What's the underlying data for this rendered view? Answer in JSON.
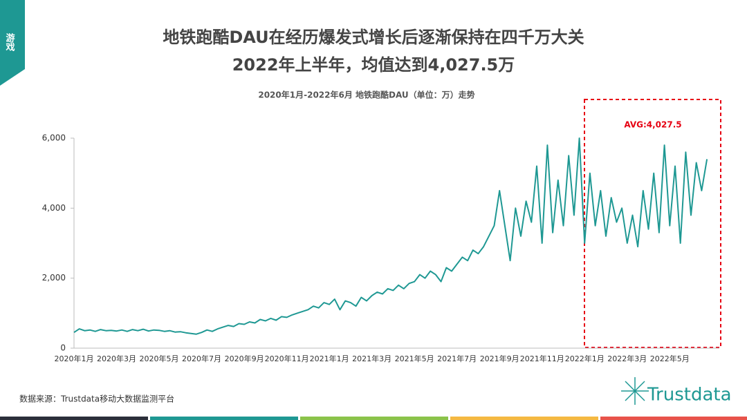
{
  "header": {
    "tag": "游戏",
    "title_lines": [
      "地铁跑酷DAU在经历爆发式增长后逐渐保持在四千万大关",
      "2022年上半年，均值达到4,027.5万"
    ]
  },
  "chart_data": {
    "type": "line",
    "title": "2020年1月-2022年6月 地铁跑酷DAU（单位：万）走势",
    "annotation": "AVG:4,027.5",
    "categories": [
      "2020年1月",
      null,
      null,
      null,
      null,
      null,
      null,
      null,
      "2020年3月",
      null,
      null,
      null,
      null,
      null,
      null,
      null,
      "2020年5月",
      null,
      null,
      null,
      null,
      null,
      null,
      null,
      "2020年7月",
      null,
      null,
      null,
      null,
      null,
      null,
      null,
      "2020年9月",
      null,
      null,
      null,
      null,
      null,
      null,
      null,
      "2020年11月",
      null,
      null,
      null,
      null,
      null,
      null,
      null,
      "2021年1月",
      null,
      null,
      null,
      null,
      null,
      null,
      null,
      "2021年3月",
      null,
      null,
      null,
      null,
      null,
      null,
      null,
      "2021年5月",
      null,
      null,
      null,
      null,
      null,
      null,
      null,
      "2021年7月",
      null,
      null,
      null,
      null,
      null,
      null,
      null,
      "2021年9月",
      null,
      null,
      null,
      null,
      null,
      null,
      null,
      "2021年11月",
      null,
      null,
      null,
      null,
      null,
      null,
      null,
      "2022年1月",
      null,
      null,
      null,
      null,
      null,
      null,
      null,
      "2022年3月",
      null,
      null,
      null,
      null,
      null,
      null,
      null,
      "2022年5月",
      null,
      null,
      null,
      null,
      null,
      null,
      null
    ],
    "values": [
      450,
      550,
      500,
      520,
      480,
      530,
      500,
      510,
      490,
      520,
      480,
      530,
      500,
      540,
      490,
      520,
      510,
      480,
      500,
      460,
      470,
      440,
      420,
      400,
      450,
      520,
      480,
      550,
      600,
      650,
      620,
      700,
      680,
      750,
      720,
      820,
      780,
      850,
      800,
      900,
      880,
      950,
      1000,
      1050,
      1100,
      1200,
      1150,
      1300,
      1250,
      1400,
      1100,
      1350,
      1300,
      1200,
      1450,
      1350,
      1500,
      1600,
      1550,
      1700,
      1650,
      1800,
      1700,
      1850,
      1900,
      2100,
      2000,
      2200,
      2100,
      1900,
      2300,
      2200,
      2400,
      2600,
      2500,
      2800,
      2700,
      2900,
      3200,
      3500,
      4500,
      3500,
      2500,
      4000,
      3200,
      4200,
      3600,
      5200,
      3000,
      5800,
      3300,
      4800,
      3500,
      5500,
      3800,
      6000,
      3000,
      5000,
      3500,
      4500,
      3200,
      4300,
      3600,
      4000,
      3000,
      3800,
      2900,
      4500,
      3400,
      5000,
      3300,
      5800,
      3500,
      5200,
      3000,
      5600,
      3800,
      5300,
      4500,
      5400
    ],
    "color": "#1e9893",
    "ylim": [
      0,
      6000
    ],
    "yticks": [
      0,
      {
        "value": 2000,
        "label": "2,000"
      },
      {
        "value": 4000,
        "label": "4,000"
      },
      {
        "value": 6000,
        "label": "6,000"
      }
    ]
  },
  "source": "数据来源：Trustdata移动大数据监测平台",
  "logo": "Trustdata"
}
